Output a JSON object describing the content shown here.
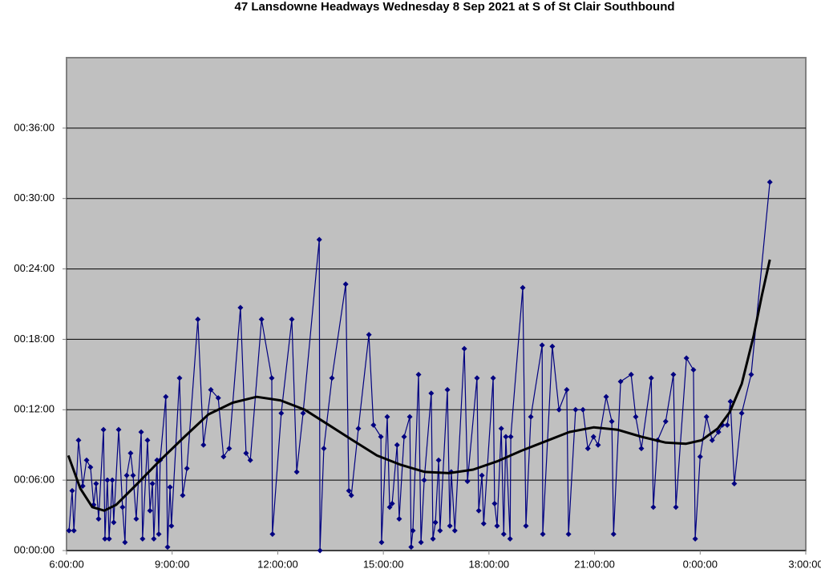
{
  "chart_data": {
    "type": "line",
    "title": "47 Lansdowne Headways Wednesday 8 Sep 2021 at S of St Clair Southbound",
    "series": [
      {
        "color": "#000080",
        "marker": "diamond",
        "x": [
          6.07,
          6.16,
          6.21,
          6.34,
          6.46,
          6.57,
          6.68,
          6.77,
          6.84,
          6.91,
          7.05,
          7.09,
          7.16,
          7.21,
          7.3,
          7.34,
          7.48,
          7.59,
          7.66,
          7.71,
          7.82,
          7.89,
          7.98,
          8.12,
          8.16,
          8.3,
          8.37,
          8.44,
          8.48,
          8.57,
          8.62,
          8.66,
          8.82,
          8.87,
          8.94,
          8.98,
          9.21,
          9.3,
          9.42,
          9.73,
          9.89,
          10.1,
          10.31,
          10.46,
          10.62,
          10.94,
          11.1,
          11.22,
          11.54,
          11.83,
          11.85,
          12.1,
          12.4,
          12.54,
          12.72,
          13.18,
          13.2,
          13.31,
          13.54,
          13.93,
          14.02,
          14.09,
          14.29,
          14.59,
          14.72,
          14.93,
          14.95,
          15.11,
          15.18,
          15.25,
          15.39,
          15.45,
          15.59,
          15.75,
          15.79,
          15.84,
          16.0,
          16.07,
          16.16,
          16.36,
          16.41,
          16.48,
          16.57,
          16.61,
          16.82,
          16.89,
          16.93,
          17.03,
          17.3,
          17.39,
          17.66,
          17.71,
          17.8,
          17.85,
          18.12,
          18.16,
          18.23,
          18.35,
          18.42,
          18.48,
          18.6,
          18.62,
          18.96,
          19.05,
          19.19,
          19.51,
          19.53,
          19.8,
          19.99,
          20.21,
          20.26,
          20.46,
          20.67,
          20.81,
          20.97,
          21.1,
          21.33,
          21.49,
          21.54,
          21.74,
          22.04,
          22.17,
          22.33,
          22.61,
          22.67,
          22.79,
          23.02,
          23.24,
          23.31,
          23.61,
          23.81,
          23.86,
          24.0,
          24.18,
          24.34,
          24.52,
          24.63,
          24.77,
          24.86,
          24.97,
          25.18,
          25.45,
          25.98
        ],
        "values": [
          1.7,
          5.1,
          1.7,
          9.4,
          5.5,
          7.7,
          7.1,
          3.9,
          5.7,
          2.7,
          10.3,
          1.0,
          6.0,
          1.0,
          6.0,
          2.4,
          10.3,
          3.7,
          0.7,
          6.4,
          8.3,
          6.4,
          2.7,
          10.1,
          1.0,
          9.4,
          3.4,
          5.7,
          1.0,
          7.7,
          1.4,
          7.7,
          13.1,
          0.3,
          5.4,
          2.1,
          14.7,
          4.7,
          7.0,
          19.7,
          9.0,
          13.7,
          13.0,
          8.0,
          8.7,
          20.7,
          8.3,
          7.7,
          19.7,
          14.7,
          1.4,
          11.7,
          19.7,
          6.7,
          11.7,
          26.5,
          0,
          8.7,
          14.7,
          22.7,
          5.1,
          4.7,
          10.4,
          18.4,
          10.7,
          9.7,
          0.7,
          11.4,
          3.7,
          4.0,
          9.0,
          2.7,
          9.7,
          11.4,
          0.3,
          1.7,
          15.0,
          0.7,
          6.0,
          13.4,
          1.0,
          2.4,
          7.7,
          1.7,
          13.7,
          2.1,
          6.7,
          1.7,
          17.2,
          5.9,
          14.7,
          3.4,
          6.4,
          2.3,
          14.7,
          4.0,
          2.1,
          10.4,
          1.4,
          9.7,
          1.0,
          9.7,
          22.4,
          2.1,
          11.4,
          17.5,
          1.4,
          17.4,
          12.0,
          13.7,
          1.4,
          12.0,
          12.0,
          8.7,
          9.7,
          9.0,
          13.1,
          11.0,
          1.4,
          14.4,
          15.0,
          11.4,
          8.7,
          14.7,
          3.7,
          9.4,
          11.0,
          15.0,
          3.7,
          16.4,
          15.4,
          1.0,
          8.0,
          11.4,
          9.4,
          10.1,
          10.7,
          10.7,
          12.7,
          5.7,
          11.7,
          15.0,
          31.4
        ]
      },
      {
        "color": "#000000",
        "x": [
          6.05,
          6.39,
          6.73,
          7.07,
          7.41,
          7.98,
          8.66,
          9.35,
          10.03,
          10.72,
          11.4,
          12.08,
          12.77,
          13.45,
          14.13,
          14.82,
          15.5,
          16.18,
          16.87,
          17.55,
          18.23,
          18.92,
          19.6,
          20.28,
          20.97,
          21.65,
          22.33,
          23.02,
          23.59,
          24.04,
          24.5,
          24.84,
          25.18,
          25.52,
          25.75,
          25.98
        ],
        "values": [
          8.1,
          5.3,
          3.7,
          3.4,
          3.9,
          5.6,
          7.7,
          9.7,
          11.6,
          12.6,
          13.1,
          12.8,
          12.0,
          10.7,
          9.4,
          8.1,
          7.3,
          6.7,
          6.6,
          6.9,
          7.6,
          8.5,
          9.3,
          10.1,
          10.5,
          10.3,
          9.7,
          9.2,
          9.1,
          9.4,
          10.4,
          11.8,
          14.2,
          18.3,
          21.7,
          24.8
        ]
      }
    ],
    "xlim": [
      6,
      27
    ],
    "xticks": [
      {
        "value": 6,
        "label": "6:00:00"
      },
      {
        "value": 9,
        "label": "9:00:00"
      },
      {
        "value": 12,
        "label": "12:00:00"
      },
      {
        "value": 15,
        "label": "15:00:00"
      },
      {
        "value": 18,
        "label": "18:00:00"
      },
      {
        "value": 21,
        "label": "21:00:00"
      },
      {
        "value": 24,
        "label": "0:00:00"
      },
      {
        "value": 27,
        "label": "3:00:00"
      }
    ],
    "ylim": [
      0,
      42
    ],
    "yticks": [
      {
        "value": 0,
        "label": "00:00:00"
      },
      {
        "value": 6,
        "label": "00:06:00"
      },
      {
        "value": 12,
        "label": "00:12:00"
      },
      {
        "value": 18,
        "label": "00:18:00"
      },
      {
        "value": 24,
        "label": "00:24:00"
      },
      {
        "value": 30,
        "label": "00:30:00"
      },
      {
        "value": 36,
        "label": "00:36:00"
      }
    ],
    "grid": true
  }
}
